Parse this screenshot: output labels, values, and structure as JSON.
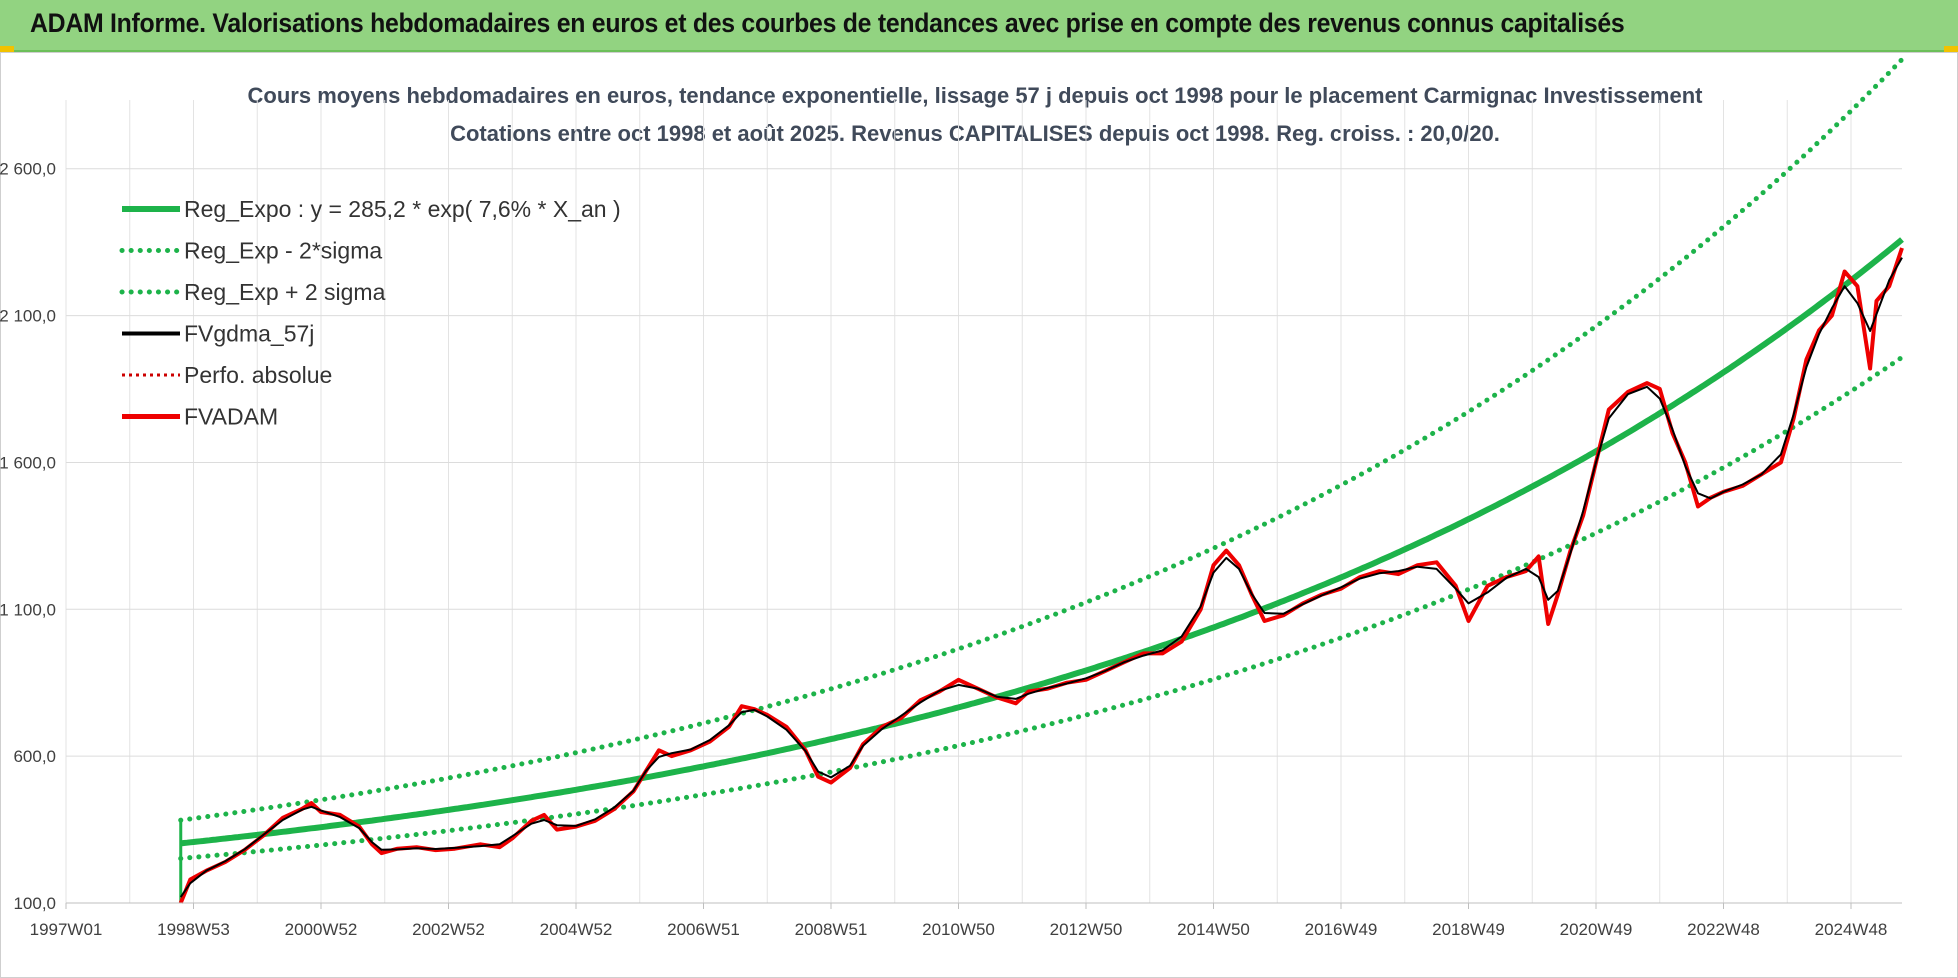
{
  "header": {
    "title": "ADAM Informe. Valorisations hebdomadaires en euros et des courbes de tendances avec prise en compte des revenus connus capitalisés"
  },
  "colors": {
    "banner_bg": "#92d381",
    "reg_expo": "#1db34a",
    "band": "#1db34a",
    "fvgdma": "#000000",
    "perfo": "#cc0000",
    "fvadam": "#ee0000"
  },
  "chart_data": {
    "type": "line",
    "title_line1": "Cours moyens hebdomadaires en euros, tendance exponentielle, lissage 57 j depuis oct 1998 pour le placement Carmignac Investissement",
    "title_line2": "Cotations entre oct 1998 et août 2025.  Revenus CAPITALISES depuis oct 1998.  Reg. croiss. : 20,0/20.",
    "xlabel": "",
    "ylabel": "",
    "ylim": [
      100,
      2800
    ],
    "xlim": [
      1997.0,
      2025.8
    ],
    "y_ticks": [
      "100,0",
      "600,0",
      "1 100,0",
      "1 600,0",
      "2 100,0",
      "2 600,0"
    ],
    "y_tick_values": [
      100,
      600,
      1100,
      1600,
      2100,
      2600
    ],
    "x_ticks": [
      "1997W01",
      "1998W53",
      "2000W52",
      "2002W52",
      "2004W52",
      "2006W51",
      "2008W51",
      "2010W50",
      "2012W50",
      "2014W50",
      "2016W49",
      "2018W49",
      "2020W49",
      "2022W48",
      "2024W48"
    ],
    "x_tick_values": [
      1997.0,
      1999.0,
      2001.0,
      2003.0,
      2005.0,
      2007.0,
      2009.0,
      2011.0,
      2013.0,
      2015.0,
      2017.0,
      2019.0,
      2021.0,
      2023.0,
      2025.0
    ],
    "grid": true,
    "legend_position": "top-left",
    "regression": {
      "a": 285.2,
      "rate": 0.076,
      "start": 1998.8
    },
    "band_factors": {
      "lower": 0.83,
      "upper": 1.26
    },
    "series": [
      {
        "name": "Reg_Expo : y = 285,2 * exp( 7,6% *  X_an )",
        "style": "solid-thick",
        "color": "#1db34a"
      },
      {
        "name": "Reg_Exp - 2*sigma",
        "style": "dotted-green",
        "color": "#1db34a"
      },
      {
        "name": "Reg_Exp + 2 sigma",
        "style": "dotted-green",
        "color": "#1db34a"
      },
      {
        "name": "FVgdma_57j",
        "style": "solid-black",
        "color": "#000000"
      },
      {
        "name": "Perfo. absolue",
        "style": "dotted-red",
        "color": "#cc0000"
      },
      {
        "name": "FVADAM",
        "style": "solid-red",
        "color": "#ee0000"
      }
    ],
    "fvadam_points": [
      [
        1998.8,
        100
      ],
      [
        1998.95,
        180
      ],
      [
        1999.2,
        210
      ],
      [
        1999.5,
        240
      ],
      [
        1999.8,
        280
      ],
      [
        2000.1,
        330
      ],
      [
        2000.4,
        390
      ],
      [
        2000.7,
        420
      ],
      [
        2000.85,
        440
      ],
      [
        2001.0,
        410
      ],
      [
        2001.3,
        400
      ],
      [
        2001.6,
        360
      ],
      [
        2001.8,
        300
      ],
      [
        2001.95,
        270
      ],
      [
        2002.2,
        285
      ],
      [
        2002.5,
        290
      ],
      [
        2002.8,
        280
      ],
      [
        2003.1,
        285
      ],
      [
        2003.5,
        300
      ],
      [
        2003.8,
        290
      ],
      [
        2004.0,
        320
      ],
      [
        2004.3,
        380
      ],
      [
        2004.5,
        400
      ],
      [
        2004.7,
        350
      ],
      [
        2005.0,
        360
      ],
      [
        2005.3,
        380
      ],
      [
        2005.6,
        420
      ],
      [
        2005.9,
        480
      ],
      [
        2006.1,
        550
      ],
      [
        2006.3,
        620
      ],
      [
        2006.5,
        600
      ],
      [
        2006.8,
        620
      ],
      [
        2007.1,
        650
      ],
      [
        2007.4,
        700
      ],
      [
        2007.6,
        770
      ],
      [
        2007.8,
        760
      ],
      [
        2008.0,
        740
      ],
      [
        2008.3,
        700
      ],
      [
        2008.6,
        620
      ],
      [
        2008.8,
        530
      ],
      [
        2009.0,
        510
      ],
      [
        2009.3,
        560
      ],
      [
        2009.5,
        640
      ],
      [
        2009.8,
        700
      ],
      [
        2010.1,
        730
      ],
      [
        2010.4,
        790
      ],
      [
        2010.7,
        820
      ],
      [
        2011.0,
        860
      ],
      [
        2011.3,
        830
      ],
      [
        2011.6,
        800
      ],
      [
        2011.9,
        780
      ],
      [
        2012.1,
        820
      ],
      [
        2012.4,
        830
      ],
      [
        2012.7,
        850
      ],
      [
        2013.0,
        860
      ],
      [
        2013.3,
        890
      ],
      [
        2013.6,
        920
      ],
      [
        2013.9,
        950
      ],
      [
        2014.2,
        950
      ],
      [
        2014.5,
        990
      ],
      [
        2014.8,
        1100
      ],
      [
        2015.0,
        1250
      ],
      [
        2015.2,
        1300
      ],
      [
        2015.4,
        1250
      ],
      [
        2015.6,
        1150
      ],
      [
        2015.8,
        1060
      ],
      [
        2016.1,
        1080
      ],
      [
        2016.4,
        1120
      ],
      [
        2016.7,
        1150
      ],
      [
        2017.0,
        1170
      ],
      [
        2017.3,
        1210
      ],
      [
        2017.6,
        1230
      ],
      [
        2017.9,
        1220
      ],
      [
        2018.2,
        1250
      ],
      [
        2018.5,
        1260
      ],
      [
        2018.8,
        1180
      ],
      [
        2019.0,
        1060
      ],
      [
        2019.3,
        1180
      ],
      [
        2019.6,
        1210
      ],
      [
        2019.9,
        1230
      ],
      [
        2020.1,
        1280
      ],
      [
        2020.25,
        1050
      ],
      [
        2020.4,
        1150
      ],
      [
        2020.6,
        1300
      ],
      [
        2020.8,
        1420
      ],
      [
        2021.0,
        1600
      ],
      [
        2021.2,
        1780
      ],
      [
        2021.5,
        1840
      ],
      [
        2021.8,
        1870
      ],
      [
        2022.0,
        1850
      ],
      [
        2022.2,
        1700
      ],
      [
        2022.4,
        1600
      ],
      [
        2022.6,
        1450
      ],
      [
        2022.8,
        1480
      ],
      [
        2023.0,
        1500
      ],
      [
        2023.3,
        1520
      ],
      [
        2023.6,
        1560
      ],
      [
        2023.9,
        1600
      ],
      [
        2024.1,
        1750
      ],
      [
        2024.3,
        1950
      ],
      [
        2024.5,
        2050
      ],
      [
        2024.7,
        2100
      ],
      [
        2024.9,
        2250
      ],
      [
        2025.1,
        2200
      ],
      [
        2025.3,
        1920
      ],
      [
        2025.4,
        2150
      ],
      [
        2025.6,
        2200
      ],
      [
        2025.8,
        2330
      ]
    ]
  }
}
